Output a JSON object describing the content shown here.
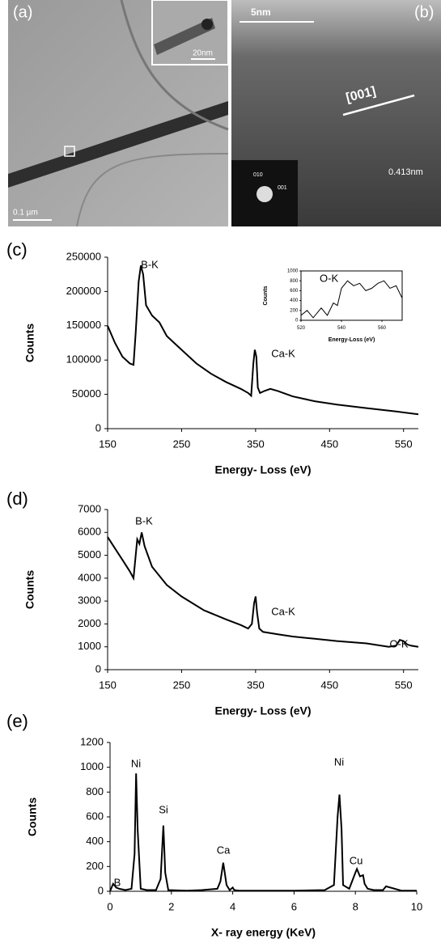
{
  "images": [
    {
      "label": "(a)",
      "texts": [
        "20nm",
        "0.1 µm"
      ]
    },
    {
      "label": "(b)",
      "texts": [
        "5nm",
        "[001]",
        "0.413nm",
        "010",
        "001"
      ]
    }
  ],
  "chart_data": [
    {
      "type": "line",
      "panel": "(c)",
      "xlabel": "Energy- Loss (eV)",
      "ylabel": "Counts",
      "xlim": [
        150,
        570
      ],
      "ylim": [
        0,
        250000
      ],
      "xticks": [
        150,
        250,
        350,
        450,
        550
      ],
      "yticks": [
        0,
        50000,
        100000,
        150000,
        200000,
        250000
      ],
      "color": "#000000",
      "annotations": [
        "B-K",
        "Ca-K"
      ],
      "x": [
        150,
        160,
        170,
        180,
        185,
        188,
        192,
        195,
        198,
        202,
        210,
        220,
        230,
        250,
        270,
        290,
        310,
        330,
        340,
        344,
        347,
        349,
        351,
        353,
        356,
        362,
        370,
        380,
        400,
        430,
        460,
        500,
        540,
        570
      ],
      "values": [
        150000,
        125000,
        105000,
        95000,
        93000,
        140000,
        215000,
        238000,
        225000,
        180000,
        165000,
        155000,
        135000,
        115000,
        95000,
        80000,
        68000,
        58000,
        52000,
        48000,
        95000,
        115000,
        105000,
        60000,
        52000,
        55000,
        58000,
        55000,
        47000,
        40000,
        35000,
        30000,
        25000,
        21000
      ]
    },
    {
      "type": "line",
      "title": "O-K",
      "xlabel": "Energy-Loss (eV)",
      "ylabel": "Counts",
      "xlim": [
        520,
        570
      ],
      "ylim": [
        0,
        1000
      ],
      "xticks": [
        520,
        540,
        560
      ],
      "yticks": [
        0,
        200,
        400,
        600,
        800,
        1000
      ],
      "color": "#000000",
      "x": [
        520,
        523,
        526,
        530,
        533,
        536,
        538,
        540,
        543,
        546,
        549,
        552,
        555,
        558,
        561,
        564,
        567,
        570
      ],
      "values": [
        100,
        200,
        50,
        250,
        100,
        350,
        300,
        650,
        800,
        700,
        750,
        600,
        650,
        750,
        800,
        650,
        700,
        450
      ]
    },
    {
      "type": "line",
      "panel": "(d)",
      "xlabel": "Energy- Loss (eV)",
      "ylabel": "Counts",
      "xlim": [
        150,
        570
      ],
      "ylim": [
        0,
        7000
      ],
      "xticks": [
        150,
        250,
        350,
        450,
        550
      ],
      "yticks": [
        0,
        1000,
        2000,
        3000,
        4000,
        5000,
        6000,
        7000
      ],
      "color": "#000000",
      "annotations": [
        "B-K",
        "Ca-K",
        "O-K"
      ],
      "x": [
        150,
        160,
        170,
        180,
        185,
        190,
        193,
        196,
        200,
        210,
        230,
        250,
        280,
        310,
        330,
        340,
        345,
        348,
        350,
        352,
        355,
        360,
        380,
        400,
        430,
        460,
        500,
        530,
        540,
        545,
        550,
        555,
        560,
        570
      ],
      "values": [
        5800,
        5300,
        4800,
        4300,
        4000,
        5700,
        5500,
        6000,
        5400,
        4500,
        3700,
        3200,
        2600,
        2200,
        1950,
        1800,
        2000,
        2900,
        3200,
        2500,
        1800,
        1650,
        1550,
        1450,
        1350,
        1250,
        1150,
        1000,
        1050,
        1300,
        1250,
        1100,
        1050,
        1000
      ]
    },
    {
      "type": "line",
      "panel": "(e)",
      "xlabel": "X- ray energy (KeV)",
      "ylabel": "Counts",
      "xlim": [
        0,
        10
      ],
      "ylim": [
        0,
        1200
      ],
      "xticks": [
        0,
        2,
        4,
        6,
        8,
        10
      ],
      "yticks": [
        0,
        200,
        400,
        600,
        800,
        1000,
        1200
      ],
      "color": "#000000",
      "annotations": [
        "B",
        "Ni",
        "Si",
        "Ca",
        "Ni",
        "Cu"
      ],
      "x": [
        0,
        0.1,
        0.2,
        0.3,
        0.5,
        0.7,
        0.8,
        0.85,
        0.9,
        1.0,
        1.2,
        1.5,
        1.65,
        1.74,
        1.8,
        1.9,
        2.5,
        3.0,
        3.5,
        3.6,
        3.69,
        3.8,
        3.9,
        4.0,
        4.05,
        4.2,
        5,
        6,
        7,
        7.3,
        7.42,
        7.48,
        7.55,
        7.6,
        7.8,
        8.0,
        8.05,
        8.15,
        8.25,
        8.3,
        8.4,
        8.6,
        8.9,
        9.0,
        9.5,
        10
      ],
      "values": [
        0,
        60,
        30,
        20,
        10,
        20,
        300,
        950,
        500,
        20,
        10,
        10,
        100,
        530,
        150,
        10,
        5,
        10,
        20,
        80,
        230,
        50,
        10,
        30,
        10,
        5,
        5,
        5,
        10,
        50,
        600,
        780,
        500,
        50,
        20,
        150,
        180,
        120,
        130,
        60,
        20,
        10,
        10,
        40,
        5,
        5
      ]
    }
  ]
}
